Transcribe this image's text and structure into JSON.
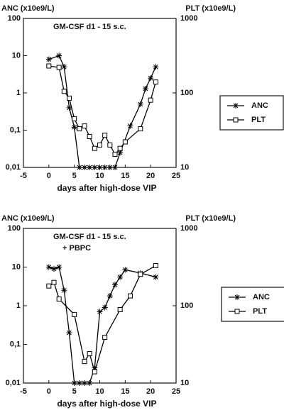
{
  "chart_data": [
    {
      "type": "line",
      "ylabel": "ANC (x10e9/L)",
      "y2label": "PLT (x10e9/L)",
      "xlabel": "days after high-dose VIP",
      "annotations": [
        "GM-CSF d1 - 15 s.c."
      ],
      "xlim": [
        -5,
        25
      ],
      "xticks": [
        -5,
        0,
        5,
        10,
        15,
        20,
        25
      ],
      "ylim": [
        0.01,
        100
      ],
      "yscale": "log",
      "yticks": [
        {
          "value": 0.01,
          "label": "0,01"
        },
        {
          "value": 0.1,
          "label": "0,1"
        },
        1,
        10,
        100
      ],
      "y2lim": [
        10,
        1000
      ],
      "y2ticks": [
        10,
        100,
        1000
      ],
      "legend": "right",
      "series": [
        {
          "name": "ANC",
          "color": "#000000",
          "marker": "star",
          "x": [
            0,
            2,
            3,
            4,
            5,
            6,
            7,
            8,
            9,
            10,
            11,
            12,
            13,
            14,
            16,
            18,
            19,
            20,
            21
          ],
          "values": [
            8,
            10,
            5,
            0.4,
            0.12,
            0.01,
            0.01,
            0.01,
            0.01,
            0.01,
            0.01,
            0.01,
            0.01,
            0.025,
            0.13,
            0.5,
            1.3,
            2.5,
            5
          ]
        },
        {
          "name": "PLT",
          "color": "#000000",
          "marker": "square",
          "axis": "y2",
          "x": [
            0,
            2,
            3,
            4,
            5,
            6,
            7,
            8,
            9,
            10,
            11,
            12,
            13,
            14,
            15,
            18,
            20,
            21
          ],
          "values": [
            230,
            220,
            105,
            85,
            45,
            33,
            36,
            26,
            18,
            20,
            27,
            20,
            15,
            18,
            22,
            33,
            80,
            140
          ]
        }
      ]
    },
    {
      "type": "line",
      "ylabel": "ANC (x10e9/L)",
      "y2label": "PLT (x10e9/L)",
      "xlabel": "days after high-dose VIP",
      "annotations": [
        "GM-CSF d1 - 15 s.c.",
        "+ PBPC"
      ],
      "xlim": [
        -5,
        25
      ],
      "xticks": [
        -5,
        0,
        5,
        10,
        15,
        20,
        25
      ],
      "ylim": [
        0.01,
        100
      ],
      "yscale": "log",
      "yticks": [
        {
          "value": 0.01,
          "label": "0,01"
        },
        {
          "value": 0.1,
          "label": "0,1"
        },
        1,
        10,
        100
      ],
      "y2lim": [
        10,
        1000
      ],
      "y2ticks": [
        10,
        100,
        1000
      ],
      "legend": "right",
      "series": [
        {
          "name": "ANC",
          "color": "#000000",
          "marker": "star",
          "x": [
            0,
            1,
            2,
            3,
            4,
            5,
            6,
            7,
            8,
            9,
            10,
            11,
            12,
            13,
            14,
            15,
            18,
            21
          ],
          "values": [
            10,
            9,
            10,
            2.5,
            0.2,
            0.01,
            0.01,
            0.01,
            0.01,
            0.025,
            0.7,
            0.9,
            1.8,
            3.5,
            5.5,
            8.5,
            7,
            5.5
          ]
        },
        {
          "name": "PLT",
          "color": "#000000",
          "marker": "square",
          "axis": "y2",
          "x": [
            0,
            1,
            2,
            5,
            7,
            8,
            9,
            11,
            14,
            16,
            18,
            21
          ],
          "values": [
            180,
            200,
            122,
            77,
            19,
            24,
            14,
            39,
            89,
            134,
            255,
            330
          ]
        }
      ]
    }
  ]
}
